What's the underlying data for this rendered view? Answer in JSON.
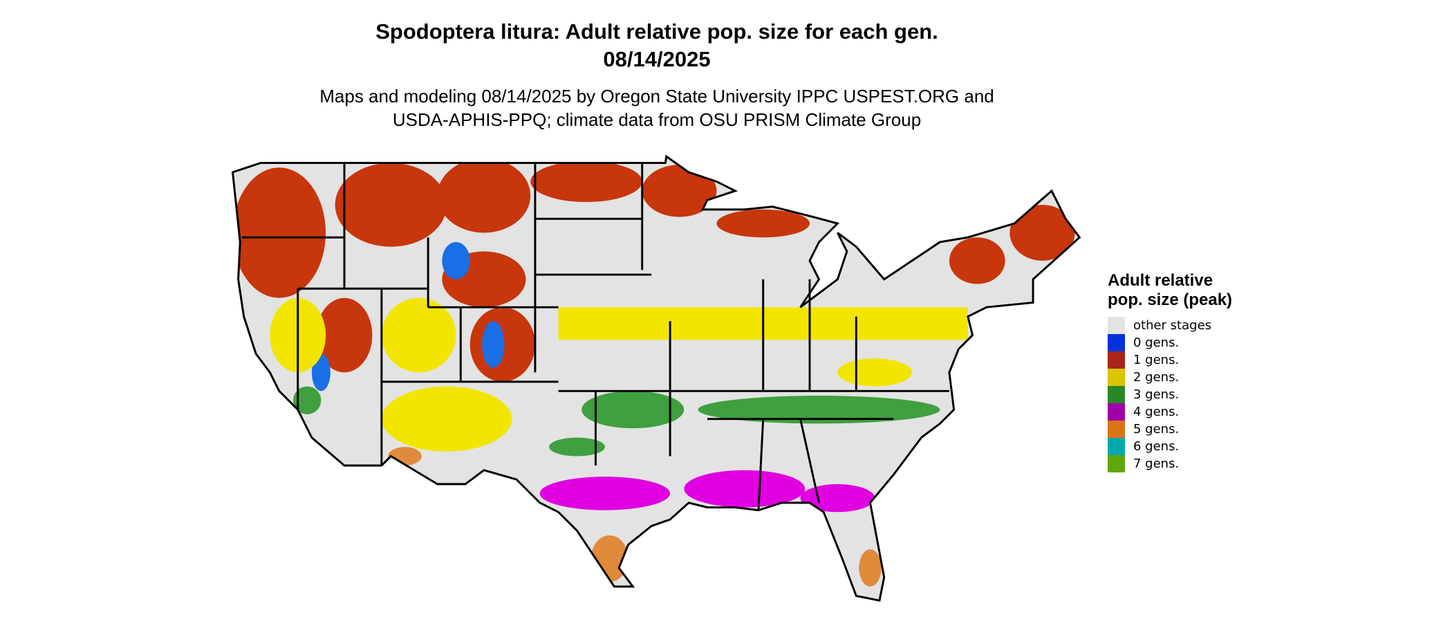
{
  "title": {
    "line1": "Spodoptera litura: Adult relative pop. size for each gen.",
    "line2": "08/14/2025"
  },
  "subtitle": {
    "line1": "Maps and modeling 08/14/2025 by Oregon State University IPPC USPEST.ORG and",
    "line2": "USDA-APHIS-PPQ; climate data from OSU PRISM Climate Group"
  },
  "legend": {
    "title": "Adult relative pop. size (peak)",
    "items": [
      {
        "label": "other stages",
        "color": "#e3e3e3"
      },
      {
        "label": "0 gens.",
        "color": "#0033dd"
      },
      {
        "label": "1 gens.",
        "color": "#a82517"
      },
      {
        "label": "2 gens.",
        "color": "#dcc400"
      },
      {
        "label": "3 gens.",
        "color": "#288828"
      },
      {
        "label": "4 gens.",
        "color": "#a000a8"
      },
      {
        "label": "5 gens.",
        "color": "#dc7414"
      },
      {
        "label": "6 gens.",
        "color": "#00aaaa"
      },
      {
        "label": "7 gens.",
        "color": "#5ea80e"
      }
    ]
  }
}
